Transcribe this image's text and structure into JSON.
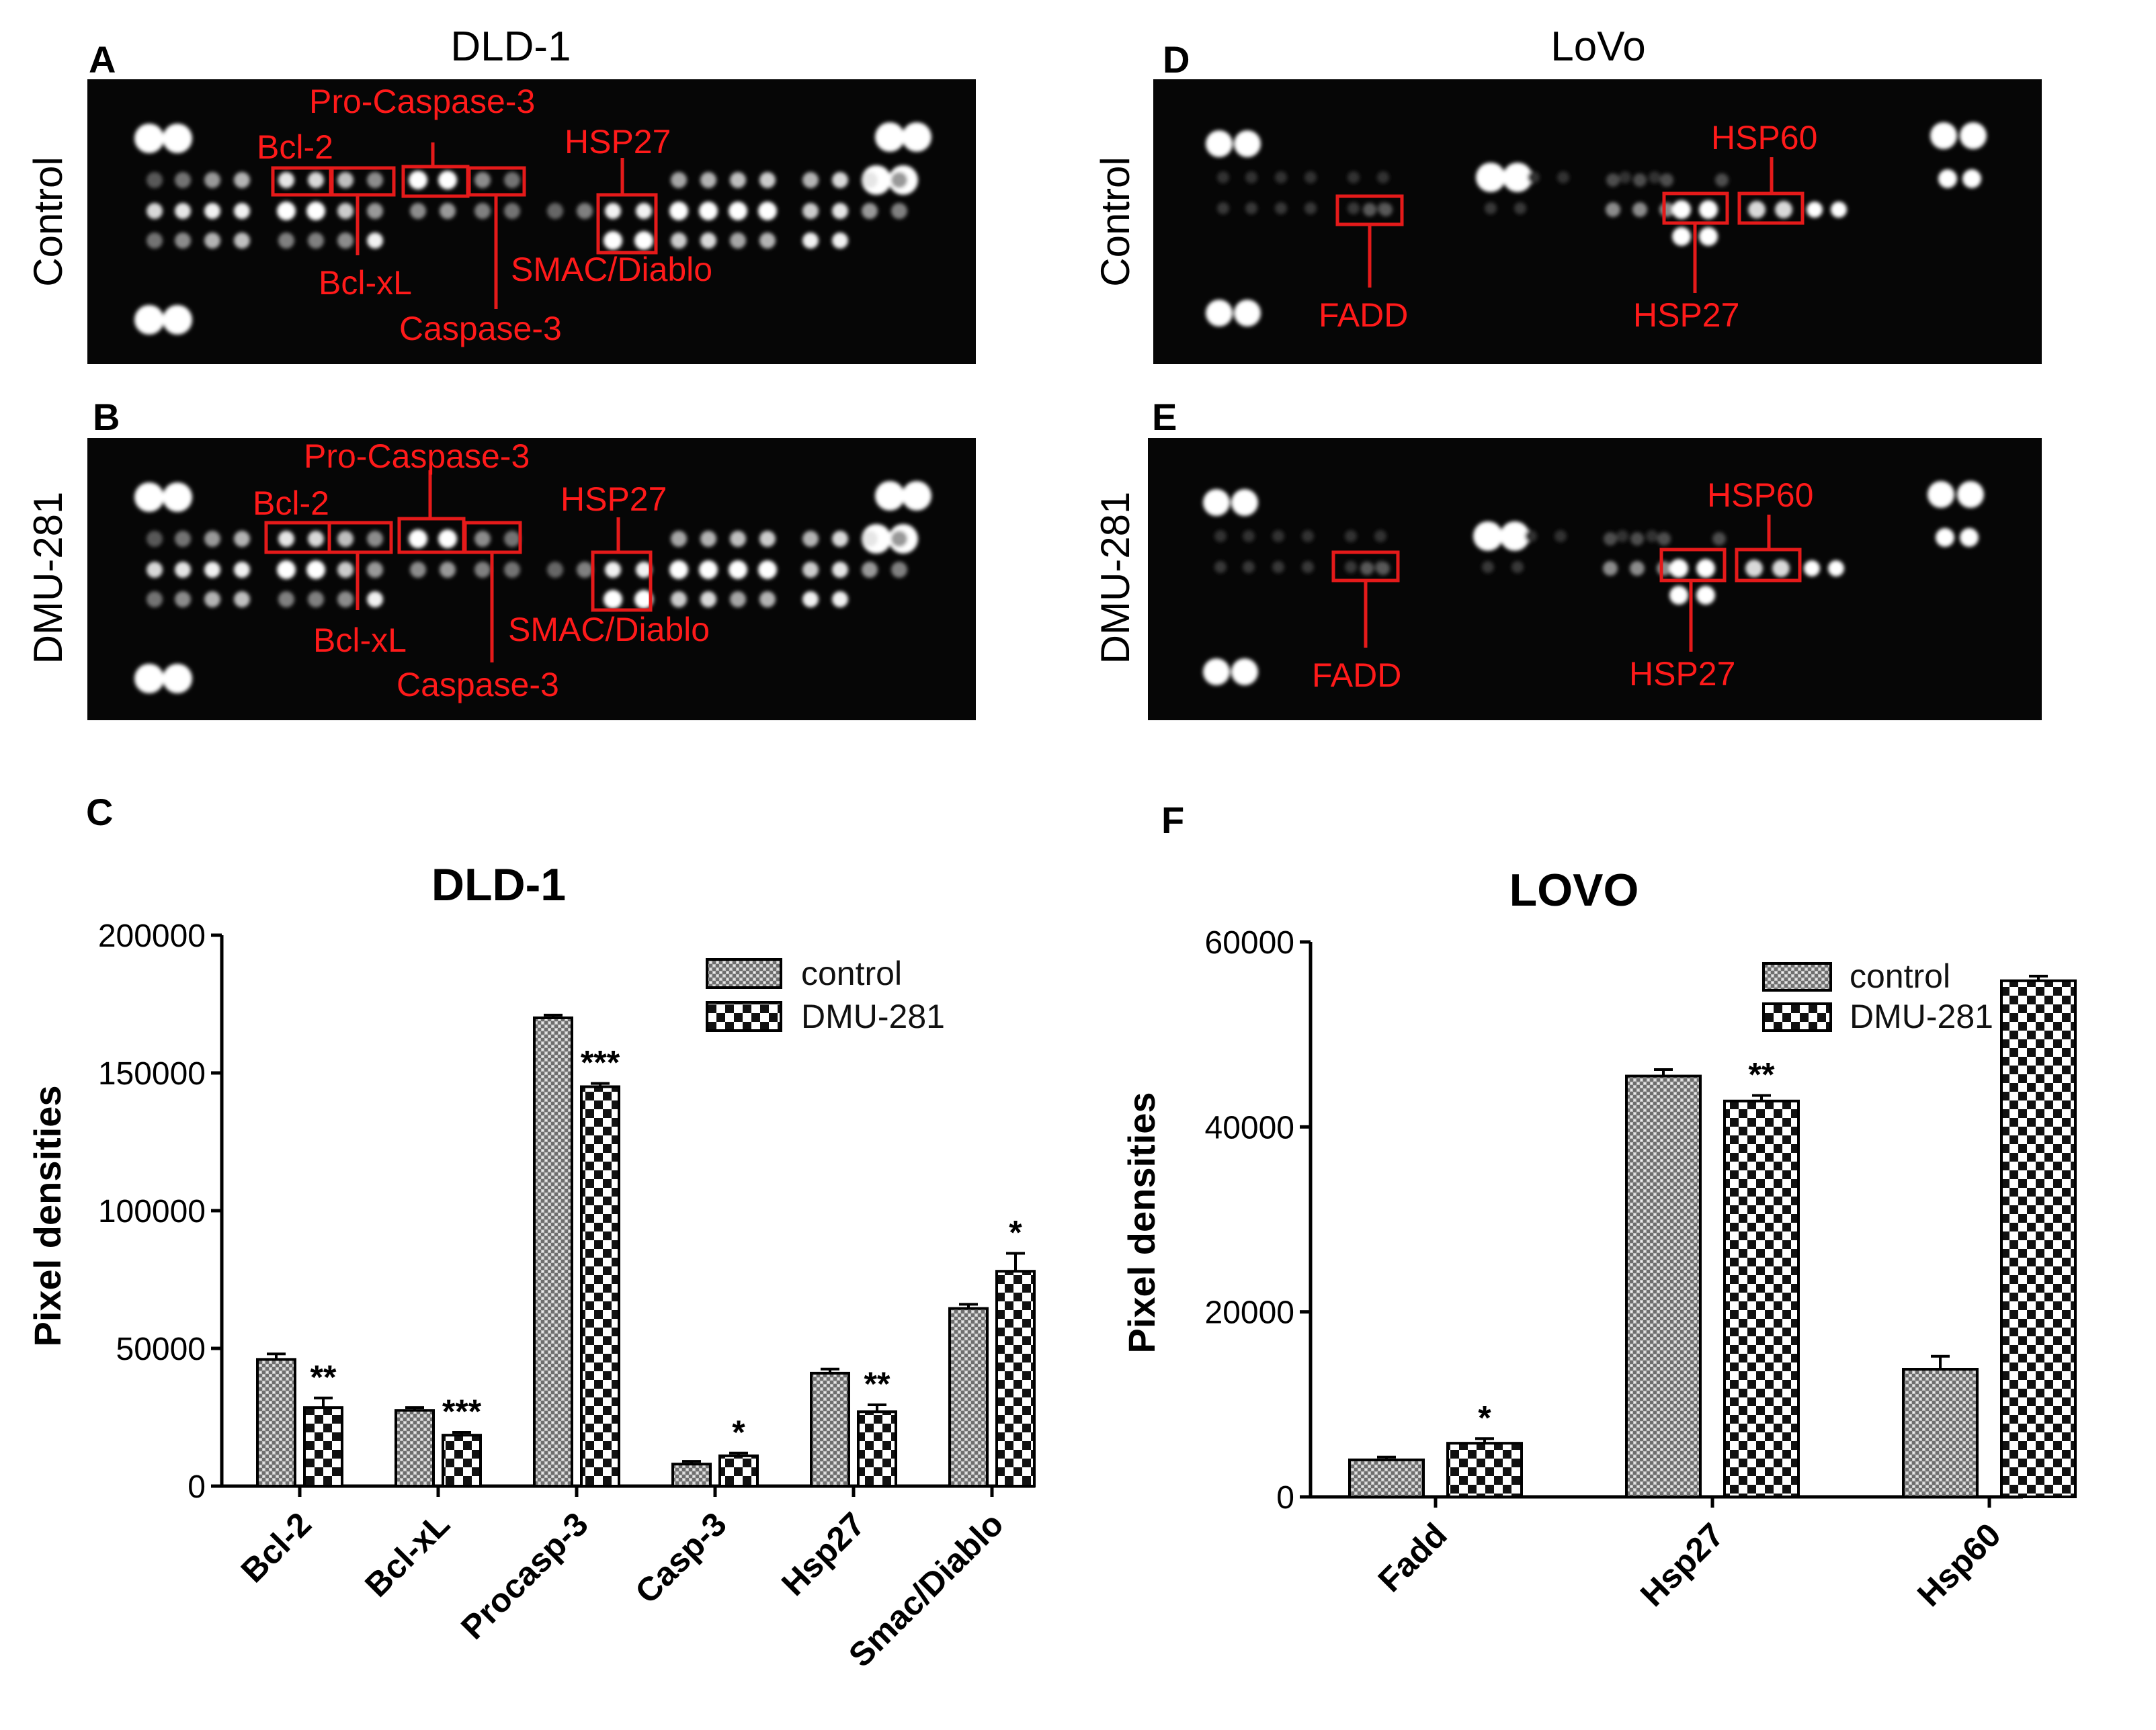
{
  "panels": {
    "A": {
      "label": "A",
      "title": "DLD-1",
      "row_label": "Control",
      "annotations": [
        "Pro-Caspase-3",
        "Bcl-2",
        "HSP27",
        "Bcl-xL",
        "SMAC/Diablo",
        "Caspase-3"
      ]
    },
    "B": {
      "label": "B",
      "row_label": "DMU-281",
      "annotations": [
        "Pro-Caspase-3",
        "Bcl-2",
        "HSP27",
        "Bcl-xL",
        "SMAC/Diablo",
        "Caspase-3"
      ]
    },
    "D": {
      "label": "D",
      "title": "LoVo",
      "row_label": "Control",
      "annotations": [
        "HSP60",
        "FADD",
        "HSP27"
      ]
    },
    "E": {
      "label": "E",
      "row_label": "DMU-281",
      "annotations": [
        "HSP60",
        "FADD",
        "HSP27"
      ]
    },
    "C": {
      "label": "C"
    },
    "F": {
      "label": "F"
    }
  },
  "chart_data": [
    {
      "panel": "C",
      "type": "bar",
      "title": "DLD-1",
      "xlabel": "",
      "ylabel": "Pixel densities",
      "ylim": [
        0,
        200000
      ],
      "yticks": [
        "0",
        "50000",
        "100000",
        "150000",
        "200000"
      ],
      "categories": [
        "Bcl-2",
        "Bcl-xL",
        "Procasp-3",
        "Casp-3",
        "Hsp27",
        "Smac/Diablo"
      ],
      "series": [
        {
          "name": "control",
          "values": [
            46000,
            27500,
            170000,
            8000,
            41000,
            64500
          ],
          "errors": [
            2000,
            1000,
            1000,
            1000,
            1500,
            1500
          ]
        },
        {
          "name": "DMU-281",
          "values": [
            28500,
            18500,
            145000,
            11000,
            27000,
            78000
          ],
          "errors": [
            3500,
            1000,
            1200,
            1000,
            2500,
            6500
          ]
        }
      ],
      "significance": [
        "**",
        "***",
        "***",
        "*",
        "**",
        "*"
      ],
      "legend": [
        "control",
        "DMU-281"
      ]
    },
    {
      "panel": "F",
      "type": "bar",
      "title": "LOVO",
      "xlabel": "",
      "ylabel": "Pixel densities",
      "ylim": [
        0,
        60000
      ],
      "yticks": [
        "0",
        "20000",
        "40000",
        "60000"
      ],
      "categories": [
        "Fadd",
        "Hsp27",
        "Hsp60"
      ],
      "series": [
        {
          "name": "control",
          "values": [
            4000,
            45500,
            13800
          ],
          "errors": [
            300,
            700,
            1400
          ]
        },
        {
          "name": "DMU-281",
          "values": [
            5800,
            42800,
            55800
          ],
          "errors": [
            500,
            600,
            500
          ]
        }
      ],
      "significance": [
        "*",
        "**",
        ""
      ],
      "legend": [
        "control",
        "DMU-281"
      ]
    }
  ]
}
